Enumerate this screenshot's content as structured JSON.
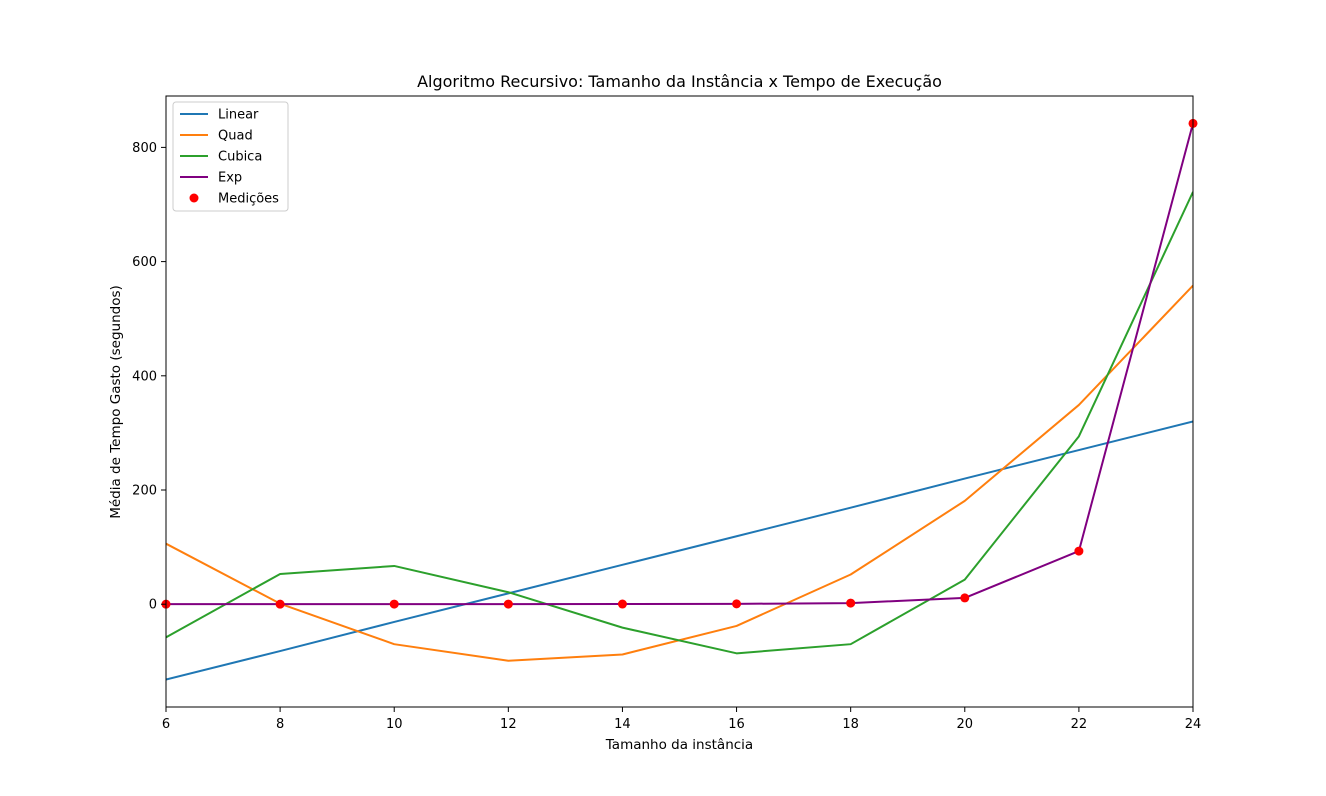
{
  "chart_data": {
    "type": "line",
    "title": "Algoritmo Recursivo: Tamanho da Instância x Tempo de Execução",
    "xlabel": "Tamanho da instância",
    "ylabel": "Média de Tempo Gasto (segundos)",
    "xlim": [
      6,
      24
    ],
    "ylim": [
      -180,
      890
    ],
    "xticks": [
      6,
      8,
      10,
      12,
      14,
      16,
      18,
      20,
      22,
      24
    ],
    "yticks": [
      0,
      200,
      400,
      600,
      800
    ],
    "legend_position": "top-left",
    "grid": false,
    "x": [
      6,
      8,
      10,
      12,
      14,
      16,
      18,
      20,
      22,
      24
    ],
    "series": [
      {
        "name": "Linear",
        "color": "#1f77b4",
        "style": "line",
        "values": [
          -132,
          -82,
          -31,
          19,
          69,
          119,
          169,
          220,
          270,
          320
        ]
      },
      {
        "name": "Quad",
        "color": "#ff7f0e",
        "style": "line",
        "values": [
          106,
          1,
          -70,
          -99,
          -88,
          -38,
          52,
          181,
          349,
          558
        ]
      },
      {
        "name": "Cubica",
        "color": "#2ca02c",
        "style": "line",
        "values": [
          -58,
          53,
          67,
          21,
          -41,
          -86,
          -70,
          43,
          294,
          722
        ]
      },
      {
        "name": "Exp",
        "color": "#800080",
        "style": "line",
        "values": [
          0.1,
          0.1,
          0.1,
          0.2,
          0.3,
          0.6,
          2,
          11,
          93,
          842
        ]
      },
      {
        "name": "Medições",
        "color": "#ff0000",
        "style": "markers",
        "values": [
          0.1,
          0.1,
          0.2,
          0.2,
          0.3,
          0.6,
          2,
          11,
          93,
          842
        ]
      }
    ]
  }
}
